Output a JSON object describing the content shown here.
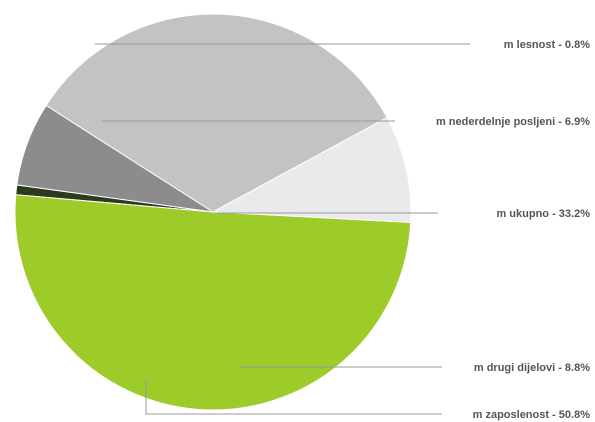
{
  "chart_data": {
    "type": "pie",
    "title": "",
    "legend": "none",
    "slices": [
      {
        "name": "m lesnost",
        "label": "m lesnost - 0.8%",
        "value": 0.8,
        "color": "#2d3a1e"
      },
      {
        "name": "m nederdelnje posljeni",
        "label": "m nederdelnje posljeni - 6.9%",
        "value": 6.9,
        "color": "#8c8c8c"
      },
      {
        "name": "m ukupno",
        "label": "m ukupno - 33.2%",
        "value": 33.2,
        "color": "#c3c3c3"
      },
      {
        "name": "m drugi dijelovi",
        "label": "m drugi dijelovi - 8.8%",
        "value": 8.8,
        "color": "#e8eaec"
      },
      {
        "name": "m zaposlenost",
        "label": "m zaposlenost - 50.8%",
        "value": 50.8,
        "color": "#9ccb2a"
      }
    ]
  }
}
